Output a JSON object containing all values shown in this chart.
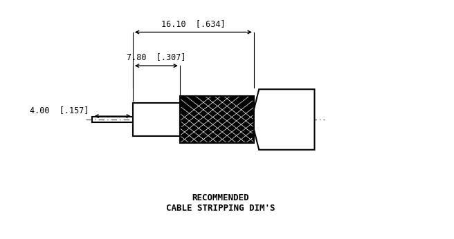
{
  "title": "RECOMMENDED\nCABLE STRIPPING DIM'S",
  "background_color": "#ffffff",
  "line_color": "#000000",
  "dim_line_color": "#000000",
  "center_line_color": "#555555",
  "hatch_color": "#000000",
  "dim1_label": "16.10  [.634]",
  "dim2_label": "7.80  [.307]",
  "dim3_label": "4.00  [.157]",
  "fig_width": 6.56,
  "fig_height": 3.46,
  "dpi": 100
}
